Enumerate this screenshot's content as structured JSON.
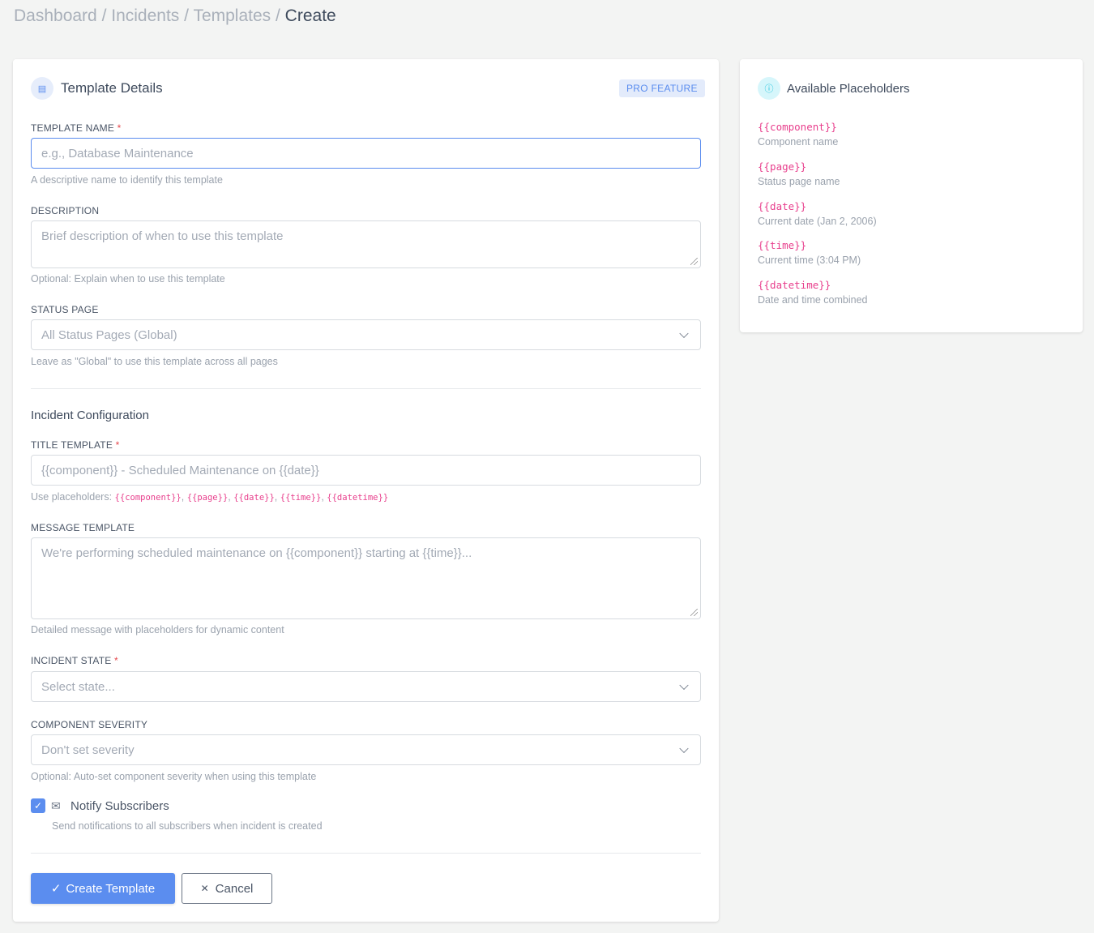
{
  "breadcrumb": [
    "Dashboard",
    "Incidents",
    "Templates",
    "Create"
  ],
  "details": {
    "title": "Template Details",
    "badge": "PRO FEATURE",
    "template_name": {
      "label": "TEMPLATE NAME",
      "placeholder": "e.g., Database Maintenance",
      "help": "A descriptive name to identify this template"
    },
    "description": {
      "label": "DESCRIPTION",
      "placeholder": "Brief description of when to use this template",
      "help": "Optional: Explain when to use this template"
    },
    "status_page": {
      "label": "STATUS PAGE",
      "value": "All Status Pages (Global)",
      "help": "Leave as \"Global\" to use this template across all pages"
    },
    "section": "Incident Configuration",
    "title_template": {
      "label": "TITLE TEMPLATE",
      "placeholder": "{{component}} - Scheduled Maintenance on {{date}}",
      "help": "Use placeholders:",
      "codes": [
        "{{component}}",
        "{{page}}",
        "{{date}}",
        "{{time}}",
        "{{datetime}}"
      ]
    },
    "message_template": {
      "label": "MESSAGE TEMPLATE",
      "placeholder": "We're performing scheduled maintenance on {{component}} starting at {{time}}...",
      "help": "Detailed message with placeholders for dynamic content"
    },
    "incident_state": {
      "label": "INCIDENT STATE",
      "value": "Select state..."
    },
    "component_severity": {
      "label": "COMPONENT SEVERITY",
      "value": "Don't set severity",
      "help": "Optional: Auto-set component severity when using this template"
    },
    "notify": {
      "label": "Notify Subscribers",
      "checked": true,
      "help": "Send notifications to all subscribers when incident is created"
    },
    "create_label": "Create Template",
    "cancel_label": "Cancel"
  },
  "placeholders": {
    "title": "Available Placeholders",
    "items": [
      {
        "code": "{{component}}",
        "desc": "Component name"
      },
      {
        "code": "{{page}}",
        "desc": "Status page name"
      },
      {
        "code": "{{date}}",
        "desc": "Current date (Jan 2, 2006)"
      },
      {
        "code": "{{time}}",
        "desc": "Current time (3:04 PM)"
      },
      {
        "code": "{{datetime}}",
        "desc": "Date and time combined"
      }
    ]
  },
  "colors": {
    "accent": "#5b8def",
    "code": "#e83e8c"
  }
}
